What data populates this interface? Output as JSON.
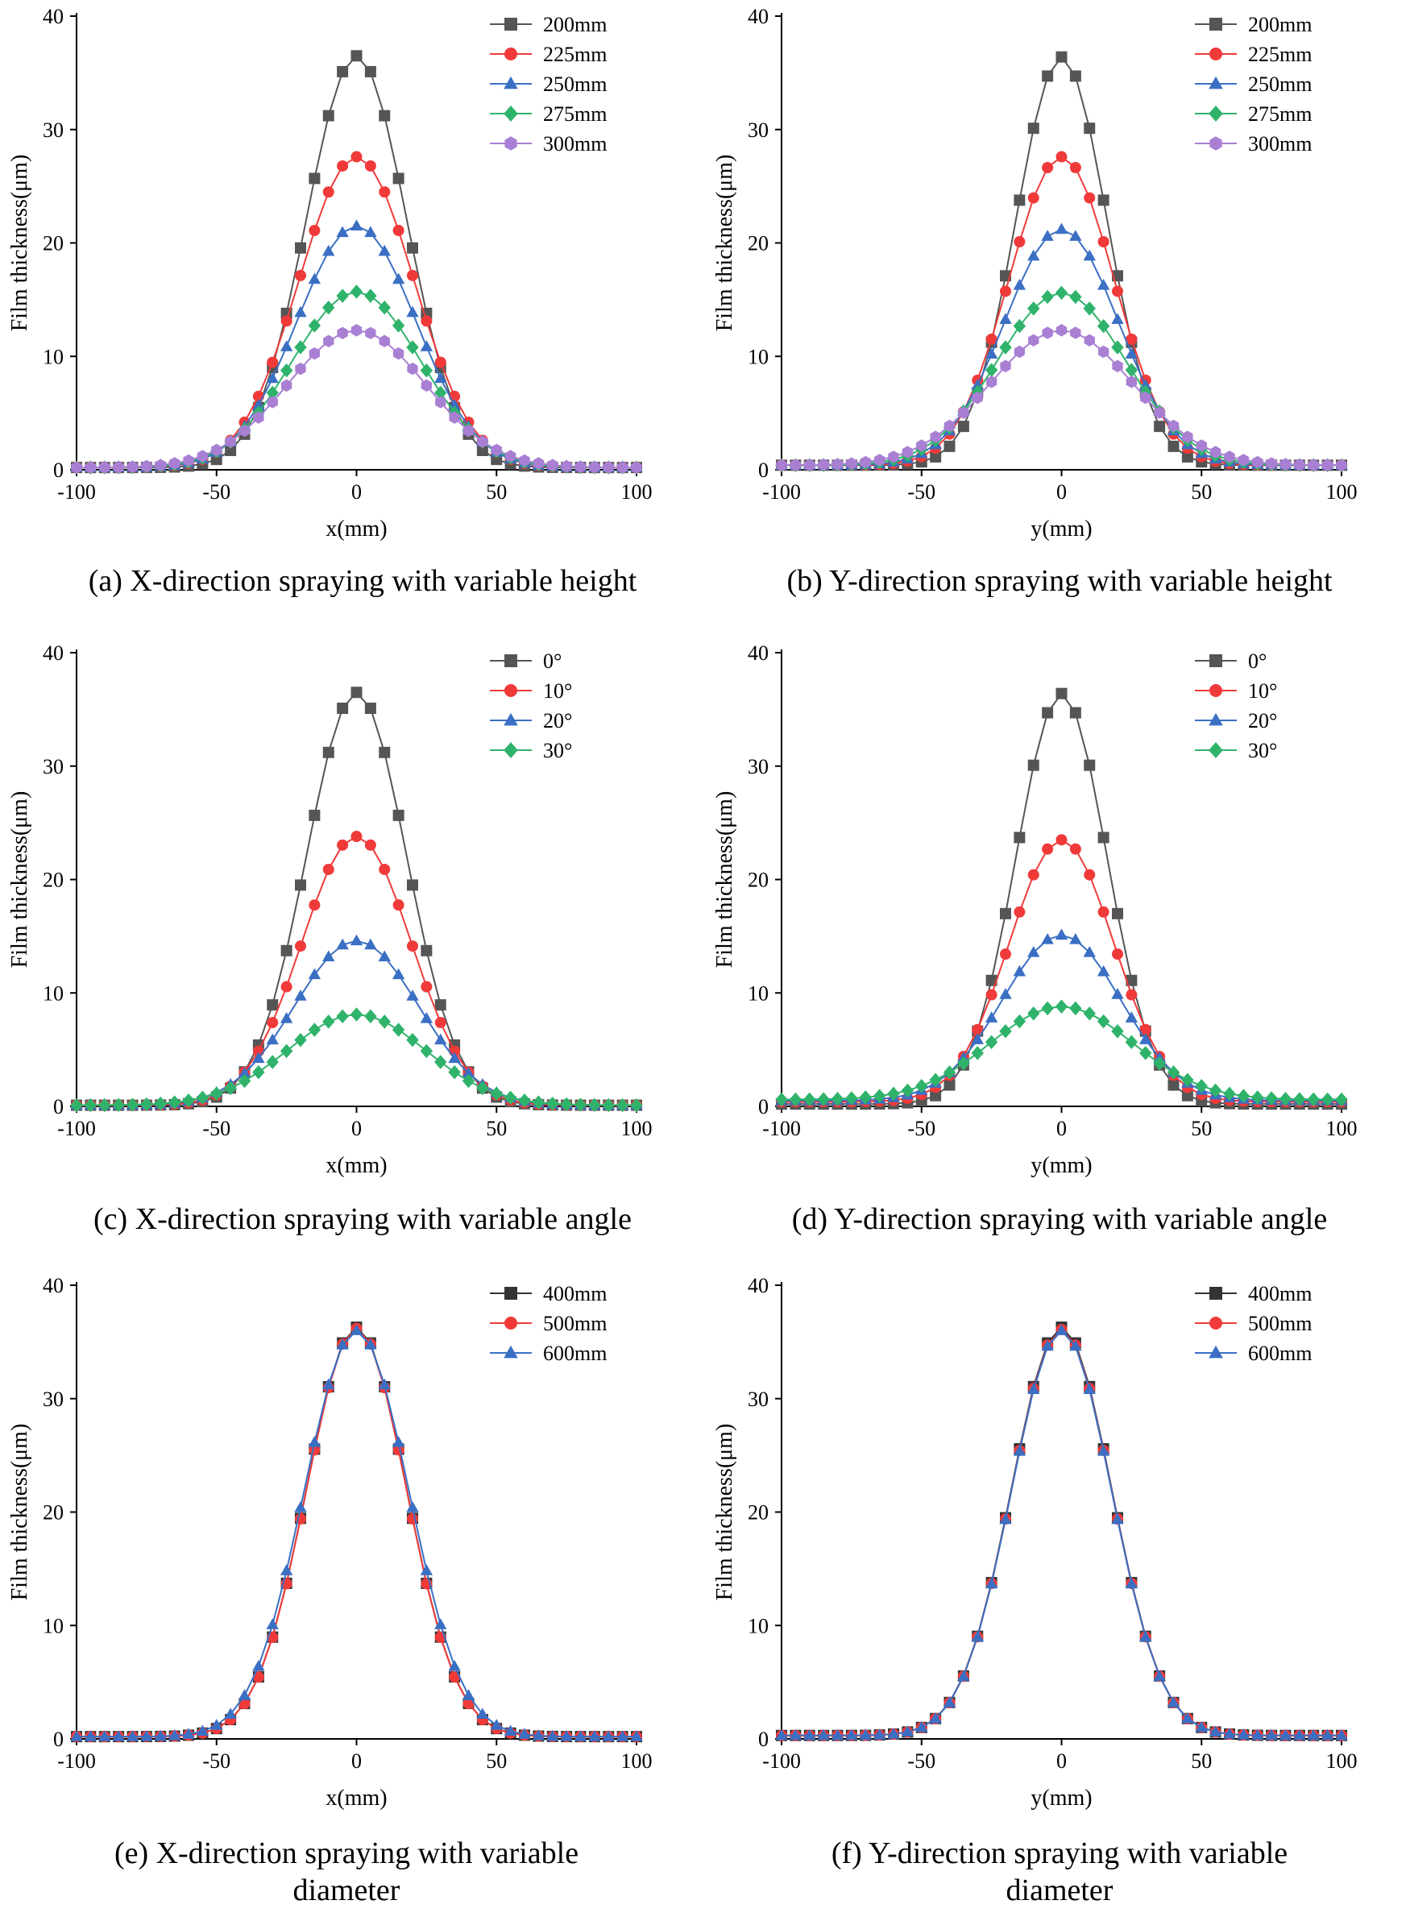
{
  "chart_data": [
    {
      "type": "line",
      "caption": "(a) X-direction spraying with variable height",
      "xlabel": "x(mm)",
      "ylabel": "Film thickness(μm)",
      "xlim": [
        -100,
        100
      ],
      "ylim": [
        0,
        40
      ],
      "xticks": [
        -100,
        -50,
        0,
        50,
        100
      ],
      "yticks": [
        0,
        10,
        20,
        30,
        40
      ],
      "legend_position": "top-right",
      "series": [
        {
          "name": "200mm",
          "color": "#555555",
          "marker": "square",
          "peak": 36.5,
          "halfwidth": 21,
          "min": 0.2
        },
        {
          "name": "225mm",
          "color": "#f03a3a",
          "marker": "circle",
          "peak": 27.6,
          "halfwidth": 24,
          "min": 0.2
        },
        {
          "name": "250mm",
          "color": "#3a6fc4",
          "marker": "triangle",
          "peak": 21.5,
          "halfwidth": 25,
          "min": 0.2
        },
        {
          "name": "275mm",
          "color": "#2fb36b",
          "marker": "diamond",
          "peak": 15.7,
          "halfwidth": 27,
          "min": 0.2
        },
        {
          "name": "300mm",
          "color": "#a97fd4",
          "marker": "hexagon",
          "peak": 12.3,
          "halfwidth": 29,
          "min": 0.2
        }
      ]
    },
    {
      "type": "line",
      "caption": "(b) Y-direction spraying with variable height",
      "xlabel": "y(mm)",
      "ylabel": "Film thickness(μm)",
      "xlim": [
        -100,
        100
      ],
      "ylim": [
        0,
        40
      ],
      "xticks": [
        -100,
        -50,
        0,
        50,
        100
      ],
      "yticks": [
        0,
        10,
        20,
        30,
        40
      ],
      "legend_position": "top-right",
      "series": [
        {
          "name": "200mm",
          "color": "#555555",
          "marker": "square",
          "peak": 36.4,
          "halfwidth": 19,
          "min": 0.4
        },
        {
          "name": "225mm",
          "color": "#f03a3a",
          "marker": "circle",
          "peak": 27.6,
          "halfwidth": 22,
          "min": 0.4
        },
        {
          "name": "250mm",
          "color": "#3a6fc4",
          "marker": "triangle",
          "peak": 21.2,
          "halfwidth": 24,
          "min": 0.4
        },
        {
          "name": "275mm",
          "color": "#2fb36b",
          "marker": "diamond",
          "peak": 15.6,
          "halfwidth": 27,
          "min": 0.4
        },
        {
          "name": "300mm",
          "color": "#a97fd4",
          "marker": "hexagon",
          "peak": 12.3,
          "halfwidth": 30,
          "min": 0.4
        }
      ]
    },
    {
      "type": "line",
      "caption": "(c) X-direction spraying with variable angle",
      "xlabel": "x(mm)",
      "ylabel": "Film thickness(μm)",
      "xlim": [
        -100,
        100
      ],
      "ylim": [
        0,
        40
      ],
      "xticks": [
        -100,
        -50,
        0,
        50,
        100
      ],
      "yticks": [
        0,
        10,
        20,
        30,
        40
      ],
      "legend_position": "top-right",
      "series": [
        {
          "name": "0°",
          "color": "#555555",
          "marker": "square",
          "peak": 36.5,
          "halfwidth": 21,
          "min": 0.1
        },
        {
          "name": "10°",
          "color": "#f03a3a",
          "marker": "circle",
          "peak": 23.8,
          "halfwidth": 23,
          "min": 0.1
        },
        {
          "name": "20°",
          "color": "#3a6fc4",
          "marker": "triangle",
          "peak": 14.6,
          "halfwidth": 26,
          "min": 0.1
        },
        {
          "name": "30°",
          "color": "#2fb36b",
          "marker": "diamond",
          "peak": 8.1,
          "halfwidth": 29,
          "min": 0.1
        }
      ]
    },
    {
      "type": "line",
      "caption": "(d) Y-direction spraying with variable angle",
      "xlabel": "y(mm)",
      "ylabel": "Film thickness(μm)",
      "xlim": [
        -100,
        100
      ],
      "ylim": [
        0,
        40
      ],
      "xticks": [
        -100,
        -50,
        0,
        50,
        100
      ],
      "yticks": [
        0,
        10,
        20,
        30,
        40
      ],
      "legend_position": "top-right",
      "series": [
        {
          "name": "0°",
          "color": "#555555",
          "marker": "square",
          "peak": 36.4,
          "halfwidth": 19,
          "min": 0.2
        },
        {
          "name": "10°",
          "color": "#f03a3a",
          "marker": "circle",
          "peak": 23.5,
          "halfwidth": 22,
          "min": 0.4
        },
        {
          "name": "20°",
          "color": "#3a6fc4",
          "marker": "triangle",
          "peak": 15.1,
          "halfwidth": 25,
          "min": 0.5
        },
        {
          "name": "30°",
          "color": "#2fb36b",
          "marker": "diamond",
          "peak": 8.8,
          "halfwidth": 30,
          "min": 0.6
        }
      ]
    },
    {
      "type": "line",
      "caption": "(e) X-direction spraying with variable diameter",
      "xlabel": "x(mm)",
      "ylabel": "Film thickness(μm)",
      "xlim": [
        -100,
        100
      ],
      "ylim": [
        0,
        40
      ],
      "xticks": [
        -100,
        -50,
        0,
        50,
        100
      ],
      "yticks": [
        0,
        10,
        20,
        30,
        40
      ],
      "legend_position": "top-right",
      "series": [
        {
          "name": "400mm",
          "color": "#333333",
          "marker": "square",
          "peak": 36.3,
          "halfwidth": 21,
          "min": 0.2
        },
        {
          "name": "500mm",
          "color": "#f03a3a",
          "marker": "circle",
          "peak": 36.2,
          "halfwidth": 21,
          "min": 0.2
        },
        {
          "name": "600mm",
          "color": "#3a6fc4",
          "marker": "triangle",
          "peak": 36.0,
          "halfwidth": 22,
          "min": 0.2
        }
      ]
    },
    {
      "type": "line",
      "caption": "(f) Y-direction spraying with variable diameter",
      "xlabel": "y(mm)",
      "ylabel": "Film thickness(μm)",
      "xlim": [
        -100,
        100
      ],
      "ylim": [
        0,
        40
      ],
      "xticks": [
        -100,
        -50,
        0,
        50,
        100
      ],
      "yticks": [
        0,
        10,
        20,
        30,
        40
      ],
      "legend_position": "top-right",
      "series": [
        {
          "name": "400mm",
          "color": "#333333",
          "marker": "square",
          "peak": 36.3,
          "halfwidth": 21,
          "min": 0.3
        },
        {
          "name": "500mm",
          "color": "#f03a3a",
          "marker": "circle",
          "peak": 36.1,
          "halfwidth": 21,
          "min": 0.3
        },
        {
          "name": "600mm",
          "color": "#3a6fc4",
          "marker": "triangle",
          "peak": 36.0,
          "halfwidth": 21,
          "min": 0.3
        }
      ]
    }
  ]
}
